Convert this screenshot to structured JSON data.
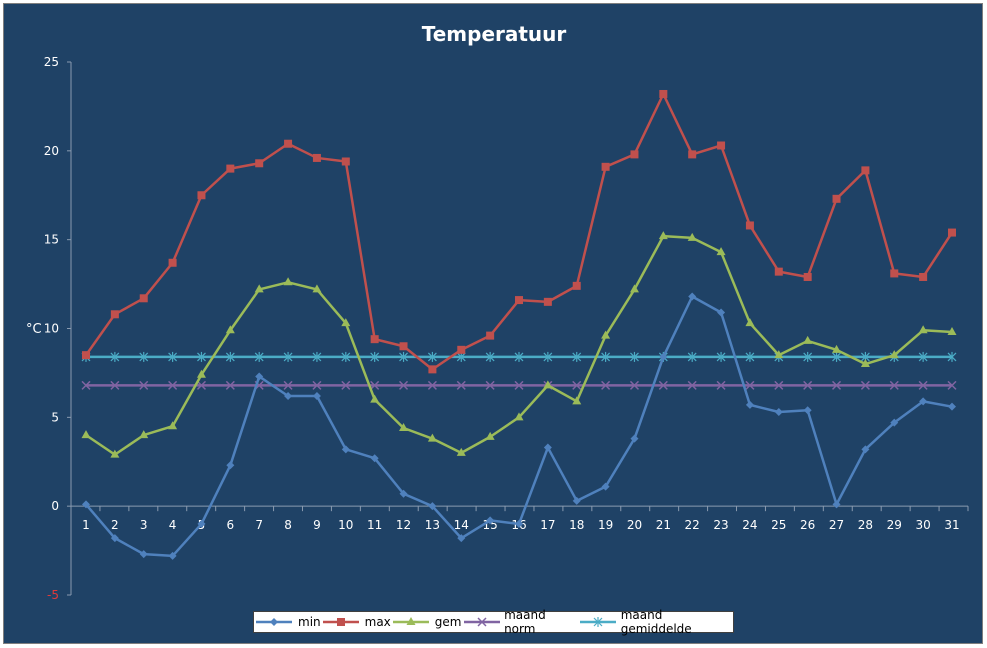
{
  "chart_data": {
    "type": "line",
    "title": "Temperatuur",
    "xlabel": "",
    "ylabel": "°C",
    "categories": [
      "1",
      "2",
      "3",
      "4",
      "5",
      "6",
      "7",
      "8",
      "9",
      "10",
      "11",
      "12",
      "13",
      "14",
      "15",
      "16",
      "17",
      "18",
      "19",
      "20",
      "21",
      "22",
      "23",
      "24",
      "25",
      "26",
      "27",
      "28",
      "29",
      "30",
      "31"
    ],
    "ylim": [
      -5,
      25
    ],
    "yticks": [
      "25",
      "20",
      "15",
      "10",
      "5",
      "0",
      "-5"
    ],
    "grid": false,
    "legend_position": "bottom",
    "series": [
      {
        "name": "min",
        "color": "#4f81bd",
        "marker": "diamond",
        "values": [
          0.1,
          -1.8,
          -2.7,
          -2.8,
          -1.0,
          2.3,
          7.3,
          6.2,
          6.2,
          3.2,
          2.7,
          0.7,
          0.0,
          -1.8,
          -0.8,
          -1.0,
          3.3,
          0.3,
          1.1,
          3.8,
          8.4,
          11.8,
          10.9,
          5.7,
          5.3,
          5.4,
          0.1,
          3.2,
          4.7,
          5.9,
          5.6
        ]
      },
      {
        "name": "max",
        "color": "#c0504d",
        "marker": "square",
        "values": [
          8.5,
          10.8,
          11.7,
          13.7,
          17.5,
          19.0,
          19.3,
          20.4,
          19.6,
          19.4,
          9.4,
          9.0,
          7.7,
          8.8,
          9.6,
          11.6,
          11.5,
          12.4,
          19.1,
          19.8,
          23.2,
          19.8,
          20.3,
          15.8,
          13.2,
          12.9,
          17.3,
          18.9,
          13.1,
          12.9,
          15.4
        ]
      },
      {
        "name": "gem",
        "color": "#9bbb59",
        "marker": "triangle",
        "values": [
          4.0,
          2.9,
          4.0,
          4.5,
          7.4,
          9.9,
          12.2,
          12.6,
          12.2,
          10.3,
          6.0,
          4.4,
          3.8,
          3.0,
          3.9,
          5.0,
          6.8,
          5.9,
          9.6,
          12.2,
          15.2,
          15.1,
          14.3,
          10.3,
          8.5,
          9.3,
          8.8,
          8.0,
          8.5,
          9.9,
          9.8
        ]
      },
      {
        "name": "maand norm",
        "color": "#8064a2",
        "marker": "x",
        "values": [
          6.8,
          6.8,
          6.8,
          6.8,
          6.8,
          6.8,
          6.8,
          6.8,
          6.8,
          6.8,
          6.8,
          6.8,
          6.8,
          6.8,
          6.8,
          6.8,
          6.8,
          6.8,
          6.8,
          6.8,
          6.8,
          6.8,
          6.8,
          6.8,
          6.8,
          6.8,
          6.8,
          6.8,
          6.8,
          6.8,
          6.8
        ]
      },
      {
        "name": "maand gemiddelde",
        "color": "#4bacc6",
        "marker": "star",
        "values": [
          8.4,
          8.4,
          8.4,
          8.4,
          8.4,
          8.4,
          8.4,
          8.4,
          8.4,
          8.4,
          8.4,
          8.4,
          8.4,
          8.4,
          8.4,
          8.4,
          8.4,
          8.4,
          8.4,
          8.4,
          8.4,
          8.4,
          8.4,
          8.4,
          8.4,
          8.4,
          8.4,
          8.4,
          8.4,
          8.4,
          8.4
        ]
      }
    ]
  }
}
